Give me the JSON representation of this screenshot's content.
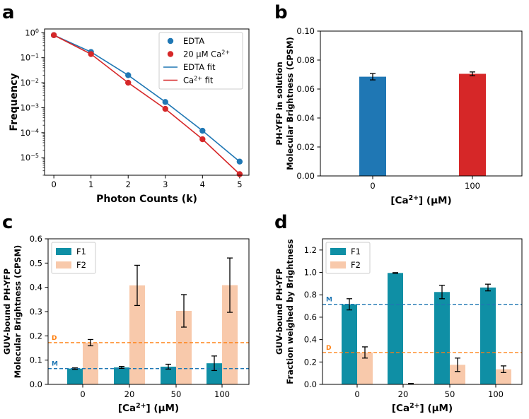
{
  "colors": {
    "edta": "#1f77b4",
    "ca": "#d62728",
    "f1": "#0f8fa5",
    "f2": "#f8c9ab",
    "m_line": "#1f77b4",
    "d_line": "#ff7f0e"
  },
  "chart_data": [
    {
      "panel": "a",
      "type": "line",
      "xlabel": "Photon Counts (k)",
      "ylabel": "Frequency",
      "yscale": "log",
      "xlim": [
        -0.25,
        5.25
      ],
      "ylim_log10": [
        -5.7,
        0.15
      ],
      "xticks": [
        "0",
        "1",
        "2",
        "3",
        "4",
        "5"
      ],
      "yticks": [
        {
          "base": "10",
          "exp": "0",
          "v": 0
        },
        {
          "base": "10",
          "exp": "−1",
          "v": -1
        },
        {
          "base": "10",
          "exp": "−2",
          "v": -2
        },
        {
          "base": "10",
          "exp": "−3",
          "v": -3
        },
        {
          "base": "10",
          "exp": "−4",
          "v": -4
        },
        {
          "base": "10",
          "exp": "−5",
          "v": -5
        }
      ],
      "x": [
        0,
        1,
        2,
        3,
        4,
        5
      ],
      "series": [
        {
          "name": "EDTA",
          "kind": "points",
          "color": "#1f77b4",
          "values": [
            0.8,
            0.17,
            0.02,
            0.0017,
            0.00012,
            7e-06
          ]
        },
        {
          "name": "20 μM Ca²⁺",
          "kind": "points",
          "color": "#d62728",
          "values": [
            0.8,
            0.14,
            0.01,
            0.0009,
            5.5e-05,
            2.2e-06
          ]
        },
        {
          "name": "EDTA fit",
          "kind": "line",
          "color": "#1f77b4",
          "values": [
            0.8,
            0.17,
            0.02,
            0.0017,
            0.00012,
            7e-06
          ]
        },
        {
          "name": "Ca²⁺ fit",
          "kind": "line",
          "color": "#d62728",
          "values": [
            0.8,
            0.14,
            0.01,
            0.0009,
            5.5e-05,
            2.2e-06
          ]
        }
      ],
      "legend": {
        "placement": "top-right",
        "entries": [
          "EDTA",
          "20 μM Ca²⁺",
          "EDTA fit",
          "Ca²⁺ fit"
        ]
      }
    },
    {
      "panel": "b",
      "type": "bar",
      "xlabel": "[Ca²⁺] (μM)",
      "ylabel_lines": [
        "PH-YFP in solution",
        "Molecular Brightness (CPSM)"
      ],
      "ylim": [
        0,
        0.1
      ],
      "yticks": [
        "0.00",
        "0.02",
        "0.04",
        "0.06",
        "0.08",
        "0.10"
      ],
      "categories": [
        "0",
        "100"
      ],
      "values": [
        0.0685,
        0.0705
      ],
      "errors": [
        0.0022,
        0.0013
      ],
      "colors": [
        "#1f77b4",
        "#d62728"
      ]
    },
    {
      "panel": "c",
      "type": "bar",
      "xlabel": "[Ca²⁺] (μM)",
      "ylabel_lines": [
        "GUV-bound PH-YFP",
        "Molecular Brightness (CPSM)"
      ],
      "ylim": [
        0,
        0.6
      ],
      "yticks": [
        "0.0",
        "0.1",
        "0.2",
        "0.3",
        "0.4",
        "0.5",
        "0.6"
      ],
      "categories": [
        "0",
        "20",
        "50",
        "100"
      ],
      "series": [
        {
          "name": "F1",
          "color": "#0f8fa5",
          "values": [
            0.065,
            0.07,
            0.073,
            0.087
          ],
          "errors": [
            0.003,
            0.004,
            0.01,
            0.03
          ]
        },
        {
          "name": "F2",
          "color": "#f8c9ab",
          "values": [
            0.172,
            0.408,
            0.303,
            0.409
          ],
          "errors": [
            0.013,
            0.083,
            0.067,
            0.112
          ]
        }
      ],
      "hlines": [
        {
          "label": "D",
          "value": 0.172,
          "color": "#ff7f0e"
        },
        {
          "label": "M",
          "value": 0.065,
          "color": "#1f77b4"
        }
      ],
      "legend": {
        "placement": "top-left",
        "entries": [
          "F1",
          "F2"
        ]
      }
    },
    {
      "panel": "d",
      "type": "bar",
      "xlabel": "[Ca²⁺] (μM)",
      "ylabel_lines": [
        "GUV-bound PH-YFP",
        "Fraction weighed by Brightness"
      ],
      "ylim": [
        0,
        1.3
      ],
      "yticks": [
        "0.0",
        "0.2",
        "0.4",
        "0.6",
        "0.8",
        "1.0",
        "1.2"
      ],
      "categories": [
        "0",
        "20",
        "50",
        "100"
      ],
      "series": [
        {
          "name": "F1",
          "color": "#0f8fa5",
          "values": [
            0.715,
            0.995,
            0.825,
            0.865
          ],
          "errors": [
            0.05,
            0.003,
            0.06,
            0.03
          ]
        },
        {
          "name": "F2",
          "color": "#f8c9ab",
          "values": [
            0.285,
            0.005,
            0.175,
            0.135
          ],
          "errors": [
            0.05,
            0.003,
            0.06,
            0.03
          ]
        }
      ],
      "hlines": [
        {
          "label": "M",
          "value": 0.715,
          "color": "#1f77b4"
        },
        {
          "label": "D",
          "value": 0.285,
          "color": "#ff7f0e"
        }
      ],
      "legend": {
        "placement": "top-left",
        "entries": [
          "F1",
          "F2"
        ]
      }
    }
  ],
  "panel_labels": {
    "a": "a",
    "b": "b",
    "c": "c",
    "d": "d"
  }
}
